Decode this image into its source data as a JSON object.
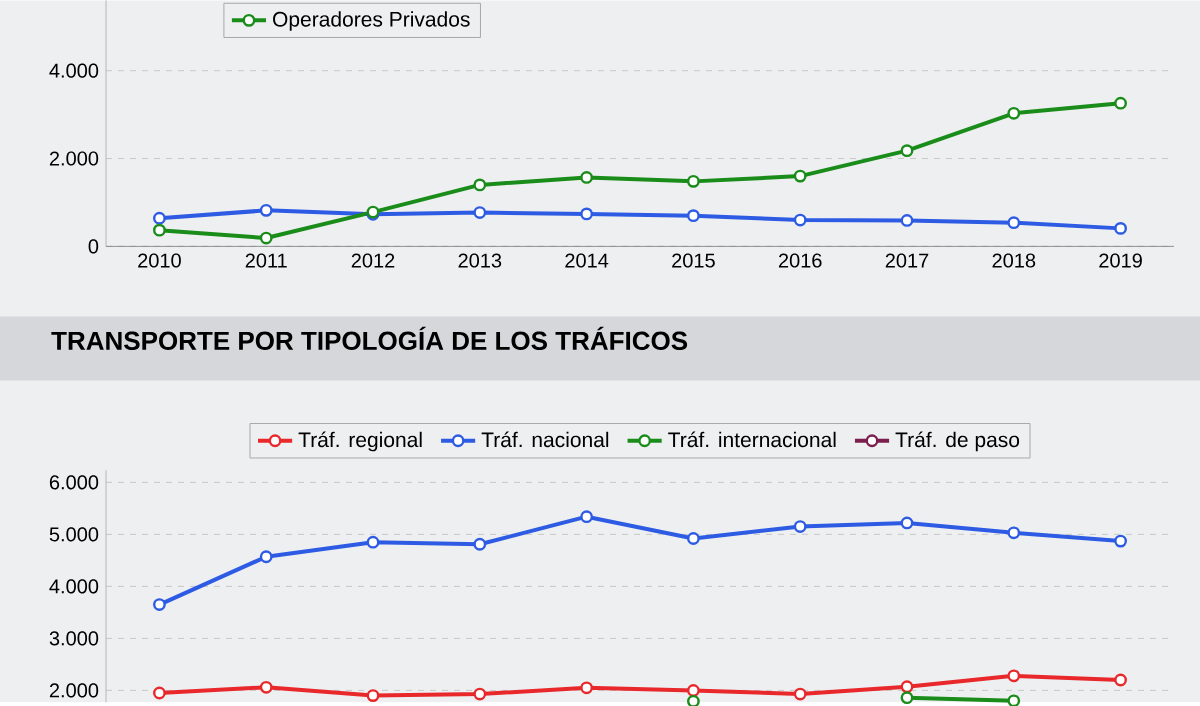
{
  "chart_data": [
    {
      "type": "line",
      "categories": [
        "2010",
        "2011",
        "2012",
        "2013",
        "2014",
        "2015",
        "2016",
        "2017",
        "2018",
        "2019"
      ],
      "ylim": [
        0,
        5600
      ],
      "yticks": [
        0,
        {
          "value": 2000,
          "label": "2.000"
        },
        {
          "value": 4000,
          "label": "4.000"
        }
      ],
      "grid": "y",
      "legend": "top left",
      "marker": "circle",
      "line_style": "solid",
      "series": [
        {
          "color": "#2d5be3",
          "values": [
            640,
            820,
            730,
            770,
            740,
            700,
            600,
            590,
            540,
            410
          ]
        },
        {
          "name": "Operadores Privados",
          "color": "#1a8c1a",
          "values": [
            370,
            190,
            780,
            1400,
            1570,
            1480,
            1600,
            2180,
            3030,
            3260
          ]
        }
      ]
    },
    {
      "type": "line",
      "title": "TRANSPORTE POR TIPOLOGÍA DE LOS TRÁFICOS",
      "categories": [
        null,
        null,
        null,
        null,
        null,
        null,
        null,
        null,
        null,
        null
      ],
      "ylim": [
        1770,
        6230
      ],
      "yticks": [
        {
          "value": 2000,
          "label": "2.000"
        },
        {
          "value": 3000,
          "label": "3.000"
        },
        {
          "value": 4000,
          "label": "4.000"
        },
        {
          "value": 5000,
          "label": "5.000"
        },
        {
          "value": 6000,
          "label": "6.000"
        }
      ],
      "grid": "y",
      "legend": "top",
      "tick_labels": "y",
      "marker": "circle",
      "line_style": "solid",
      "series": [
        {
          "name": "Tráf. regional",
          "color": "#e8282b",
          "values": [
            1950,
            2060,
            1900,
            1930,
            2050,
            2000,
            1930,
            2070,
            2280,
            2200
          ]
        },
        {
          "name": "Tráf. nacional",
          "color": "#2d5be3",
          "values": [
            3650,
            4570,
            4850,
            4810,
            5340,
            4920,
            5150,
            5220,
            5030,
            4870
          ]
        },
        {
          "name": "Tráf. internacional",
          "color": "#1a8c1a",
          "values": [
            null,
            null,
            null,
            null,
            null,
            1790,
            null,
            1860,
            1800,
            null
          ]
        },
        {
          "name": "Tráf. de paso",
          "color": "#7b1f4f",
          "values": [
            null,
            null,
            null,
            null,
            null,
            null,
            null,
            null,
            null,
            null
          ]
        }
      ]
    }
  ]
}
